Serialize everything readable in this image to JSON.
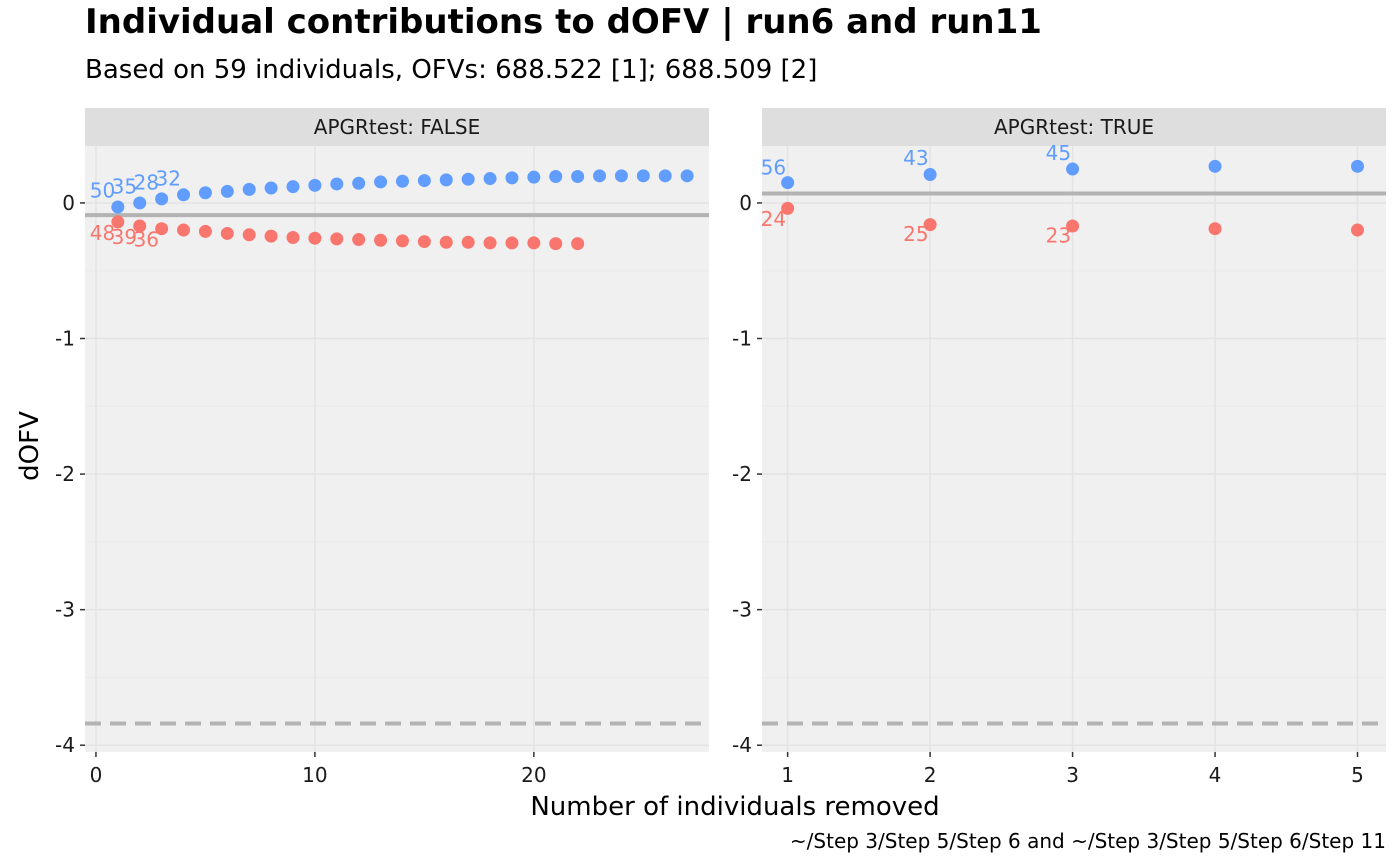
{
  "title": "Individual contributions to dOFV | run6 and run11",
  "subtitle": "Based on 59 individuals, OFVs: 688.522 [1]; 688.509 [2]",
  "caption": "~/Step 3/Step 5/Step 6 and ~/Step 3/Step 5/Step 6/Step 11",
  "colors": {
    "series_1": "#619CFF",
    "series_2": "#F8766D",
    "panel_bg": "#F0F0F0",
    "strip_bg": "#DEDEDE",
    "grid": "#E3E3E3",
    "reference_line": "#B3B3B3"
  },
  "chart_data": [
    {
      "type": "scatter",
      "panel_label": "APGRtest: FALSE",
      "xlabel": "Number of individuals removed",
      "ylabel": "dOFV",
      "xlim": [
        -0.5,
        28
      ],
      "ylim": [
        -4.05,
        0.42
      ],
      "x_ticks": [
        0,
        10,
        20
      ],
      "y_ticks": [
        0,
        -1,
        -2,
        -3,
        -4
      ],
      "grid": true,
      "hline_solid": -0.09,
      "hline_dashed": -3.84,
      "series": [
        {
          "color_key": "series_1",
          "points": [
            [
              1,
              -0.03
            ],
            [
              2,
              0.0
            ],
            [
              3,
              0.03
            ],
            [
              4,
              0.06
            ],
            [
              5,
              0.075
            ],
            [
              6,
              0.085
            ],
            [
              7,
              0.1
            ],
            [
              8,
              0.11
            ],
            [
              9,
              0.12
            ],
            [
              10,
              0.13
            ],
            [
              11,
              0.14
            ],
            [
              12,
              0.145
            ],
            [
              13,
              0.155
            ],
            [
              14,
              0.16
            ],
            [
              15,
              0.165
            ],
            [
              16,
              0.17
            ],
            [
              17,
              0.175
            ],
            [
              18,
              0.18
            ],
            [
              19,
              0.185
            ],
            [
              20,
              0.19
            ],
            [
              21,
              0.195
            ],
            [
              22,
              0.195
            ],
            [
              23,
              0.2
            ],
            [
              24,
              0.2
            ],
            [
              25,
              0.2
            ],
            [
              26,
              0.2
            ],
            [
              27,
              0.2
            ]
          ],
          "labels": [
            {
              "x": 0.3,
              "y": 0.09,
              "text": "50"
            },
            {
              "x": 1.3,
              "y": 0.12,
              "text": "35"
            },
            {
              "x": 2.3,
              "y": 0.15,
              "text": "28"
            },
            {
              "x": 3.3,
              "y": 0.18,
              "text": "32"
            }
          ]
        },
        {
          "color_key": "series_2",
          "points": [
            [
              1,
              -0.14
            ],
            [
              2,
              -0.17
            ],
            [
              3,
              -0.19
            ],
            [
              4,
              -0.2
            ],
            [
              5,
              -0.21
            ],
            [
              6,
              -0.225
            ],
            [
              7,
              -0.235
            ],
            [
              8,
              -0.245
            ],
            [
              9,
              -0.255
            ],
            [
              10,
              -0.26
            ],
            [
              11,
              -0.265
            ],
            [
              12,
              -0.27
            ],
            [
              13,
              -0.275
            ],
            [
              14,
              -0.28
            ],
            [
              15,
              -0.285
            ],
            [
              16,
              -0.29
            ],
            [
              17,
              -0.29
            ],
            [
              18,
              -0.295
            ],
            [
              19,
              -0.295
            ],
            [
              20,
              -0.295
            ],
            [
              21,
              -0.3
            ],
            [
              22,
              -0.3
            ]
          ],
          "labels": [
            {
              "x": 0.3,
              "y": -0.22,
              "text": "48"
            },
            {
              "x": 1.3,
              "y": -0.25,
              "text": "39"
            },
            {
              "x": 2.3,
              "y": -0.27,
              "text": "36"
            }
          ]
        }
      ]
    },
    {
      "type": "scatter",
      "panel_label": "APGRtest: TRUE",
      "xlabel": "Number of individuals removed",
      "ylabel": "dOFV",
      "xlim": [
        0.82,
        5.2
      ],
      "ylim": [
        -4.05,
        0.42
      ],
      "x_ticks": [
        1,
        2,
        3,
        4,
        5
      ],
      "y_ticks": [
        0,
        -1,
        -2,
        -3,
        -4
      ],
      "grid": true,
      "hline_solid": 0.07,
      "hline_dashed": -3.84,
      "series": [
        {
          "color_key": "series_1",
          "points": [
            [
              1,
              0.15
            ],
            [
              2,
              0.21
            ],
            [
              3,
              0.25
            ],
            [
              4,
              0.27
            ],
            [
              5,
              0.27
            ]
          ],
          "labels": [
            {
              "x": 0.9,
              "y": 0.26,
              "text": "56"
            },
            {
              "x": 1.9,
              "y": 0.33,
              "text": "43"
            },
            {
              "x": 2.9,
              "y": 0.37,
              "text": "45"
            }
          ]
        },
        {
          "color_key": "series_2",
          "points": [
            [
              1,
              -0.04
            ],
            [
              2,
              -0.16
            ],
            [
              3,
              -0.17
            ],
            [
              4,
              -0.19
            ],
            [
              5,
              -0.2
            ]
          ],
          "labels": [
            {
              "x": 0.9,
              "y": -0.12,
              "text": "24"
            },
            {
              "x": 1.9,
              "y": -0.23,
              "text": "25"
            },
            {
              "x": 2.9,
              "y": -0.24,
              "text": "23"
            }
          ]
        }
      ]
    }
  ]
}
